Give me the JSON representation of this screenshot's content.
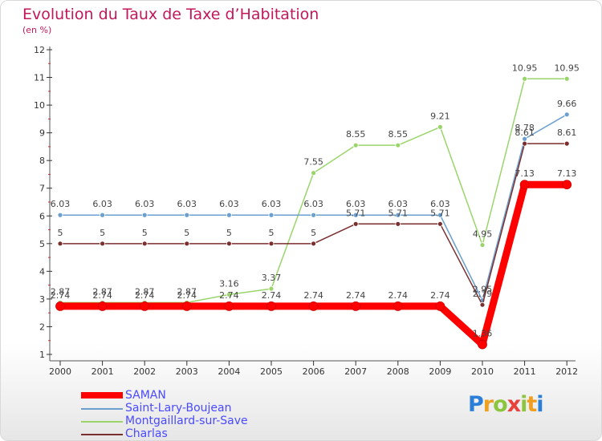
{
  "title": "Evolution du Taux de Taxe d’Habitation",
  "subtitle": "(en %)",
  "logo": {
    "letters": [
      "P",
      "r",
      "o",
      "x",
      "i",
      "t",
      "i"
    ]
  },
  "chart_data": {
    "type": "line",
    "x": [
      "2000",
      "2001",
      "2002",
      "2003",
      "2004",
      "2005",
      "2006",
      "2007",
      "2008",
      "2009",
      "2010",
      "2011",
      "2012"
    ],
    "ylim": [
      1,
      12
    ],
    "yticks": [
      1,
      2,
      3,
      4,
      5,
      6,
      7,
      8,
      9,
      10,
      11,
      12
    ],
    "grid": false,
    "legend_position": "bottom-left",
    "series": [
      {
        "name": "SAMAN",
        "color": "#ff0000",
        "width": 9,
        "values": [
          2.74,
          2.74,
          2.74,
          2.74,
          2.74,
          2.74,
          2.74,
          2.74,
          2.74,
          2.74,
          1.36,
          7.13,
          7.13
        ],
        "labels": [
          "2.74",
          "2.74",
          "2.74",
          "2.74",
          "2.74",
          "2.74",
          "2.74",
          "2.74",
          "2.74",
          "2.74",
          "1.36",
          "7.13",
          "7.13"
        ]
      },
      {
        "name": "Saint-Lary-Boujean",
        "color": "#6a9fcf",
        "width": 1.5,
        "values": [
          6.03,
          6.03,
          6.03,
          6.03,
          6.03,
          6.03,
          6.03,
          6.03,
          6.03,
          6.03,
          2.95,
          8.78,
          9.66
        ],
        "labels": [
          "6.03",
          "6.03",
          "6.03",
          "6.03",
          "6.03",
          "6.03",
          "6.03",
          "6.03",
          "6.03",
          "6.03",
          "2.95",
          "8.78",
          "9.66"
        ]
      },
      {
        "name": "Montgaillard-sur-Save",
        "color": "#9ad56b",
        "width": 1.5,
        "values": [
          2.87,
          2.87,
          2.87,
          2.87,
          3.16,
          3.37,
          7.55,
          8.55,
          8.55,
          9.21,
          4.95,
          10.95,
          10.95
        ],
        "labels": [
          "2.87",
          "2.87",
          "2.87",
          "2.87",
          "3.16",
          "3.37",
          "7.55",
          "8.55",
          "8.55",
          "9.21",
          "4.95",
          "10.95",
          "10.95"
        ]
      },
      {
        "name": "Charlas",
        "color": "#7a2e2e",
        "width": 1.5,
        "values": [
          5,
          5,
          5,
          5,
          5,
          5,
          5,
          5.71,
          5.71,
          5.71,
          2.79,
          8.61,
          8.61
        ],
        "labels": [
          "5",
          "5",
          "5",
          "5",
          "5",
          "5",
          "5",
          "5.71",
          "5.71",
          "5.71",
          "2.79",
          "8.61",
          "8.61"
        ]
      }
    ]
  }
}
